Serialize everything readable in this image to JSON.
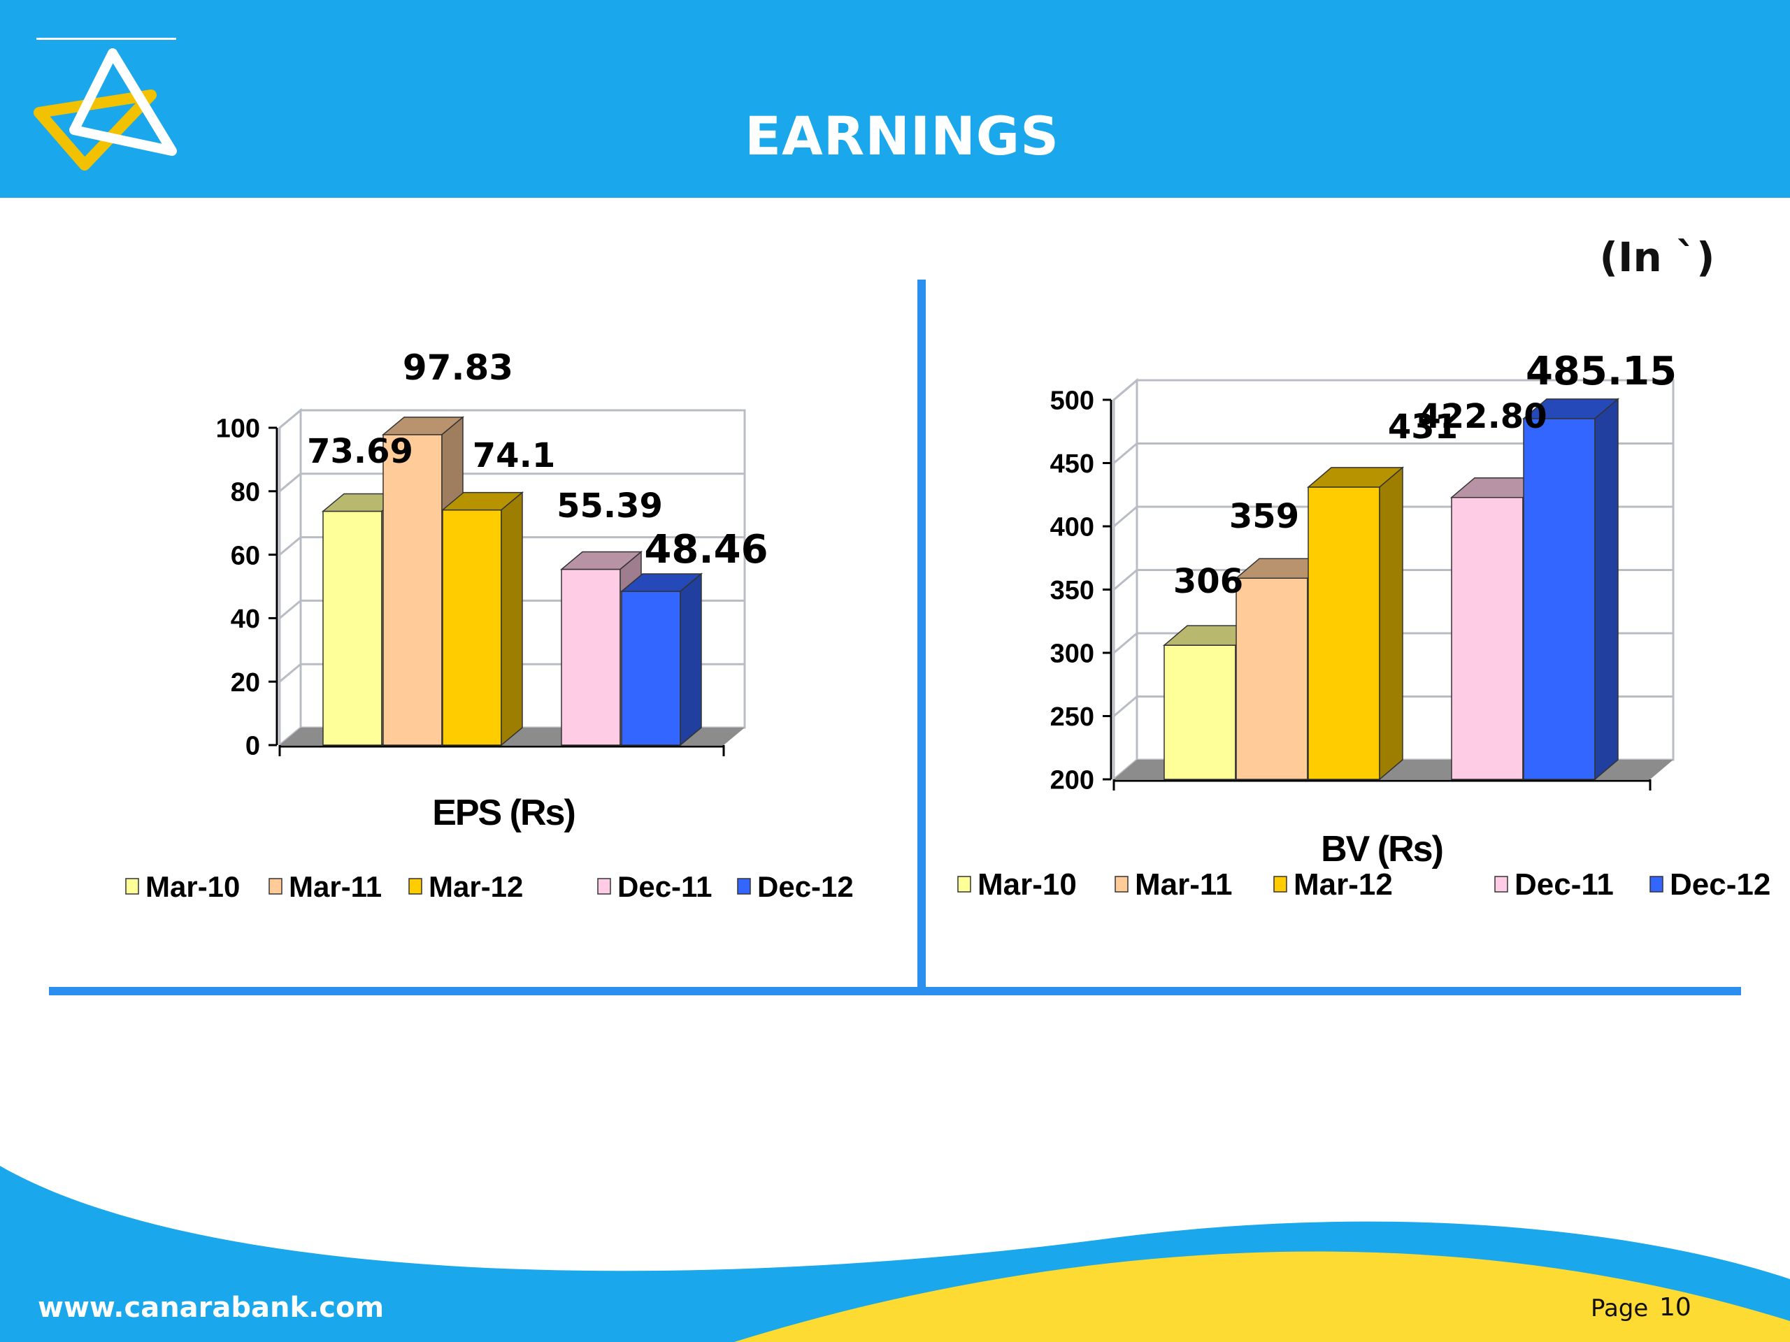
{
  "header": {
    "title": "EARNINGS",
    "unit_note": "(In `)"
  },
  "footer": {
    "website": "www.canarabank.com",
    "page_label": "Page",
    "page_number": "10"
  },
  "colors": {
    "header_blue": "#1aa7ec",
    "divider_blue": "#2b8ff0",
    "footer_yellow": "#fddb33",
    "series": [
      "#ffff99",
      "#ffcc99",
      "#ffcc00",
      "#ffcce5",
      "#3366ff"
    ]
  },
  "chart_data": [
    {
      "type": "bar",
      "title": "",
      "xlabel": "EPS (Rs)",
      "ylabel": "",
      "ylim": [
        0,
        100
      ],
      "yticks": [
        "0",
        "20",
        "40",
        "60",
        "80",
        "100"
      ],
      "series": [
        {
          "name": "Mar-10",
          "value": 73.69,
          "label": "73.69"
        },
        {
          "name": "Mar-11",
          "value": 97.83,
          "label": "97.83"
        },
        {
          "name": "Mar-12",
          "value": 74.1,
          "label": "74.1"
        },
        {
          "name": "Dec-11",
          "value": 55.39,
          "label": "55.39"
        },
        {
          "name": "Dec-12",
          "value": 48.46,
          "label": "48.46"
        }
      ],
      "legend": "bottom",
      "grid": true
    },
    {
      "type": "bar",
      "title": "",
      "xlabel": "BV (Rs)",
      "ylabel": "",
      "ylim": [
        200,
        500
      ],
      "yticks": [
        "200",
        "250",
        "300",
        "350",
        "400",
        "450",
        "500"
      ],
      "series": [
        {
          "name": "Mar-10",
          "value": 306,
          "label": "306"
        },
        {
          "name": "Mar-11",
          "value": 359,
          "label": "359"
        },
        {
          "name": "Mar-12",
          "value": 431,
          "label": "431"
        },
        {
          "name": "Dec-11",
          "value": 422.8,
          "label": "422.80"
        },
        {
          "name": "Dec-12",
          "value": 485.15,
          "label": "485.15"
        }
      ],
      "legend": "bottom",
      "grid": true
    }
  ]
}
